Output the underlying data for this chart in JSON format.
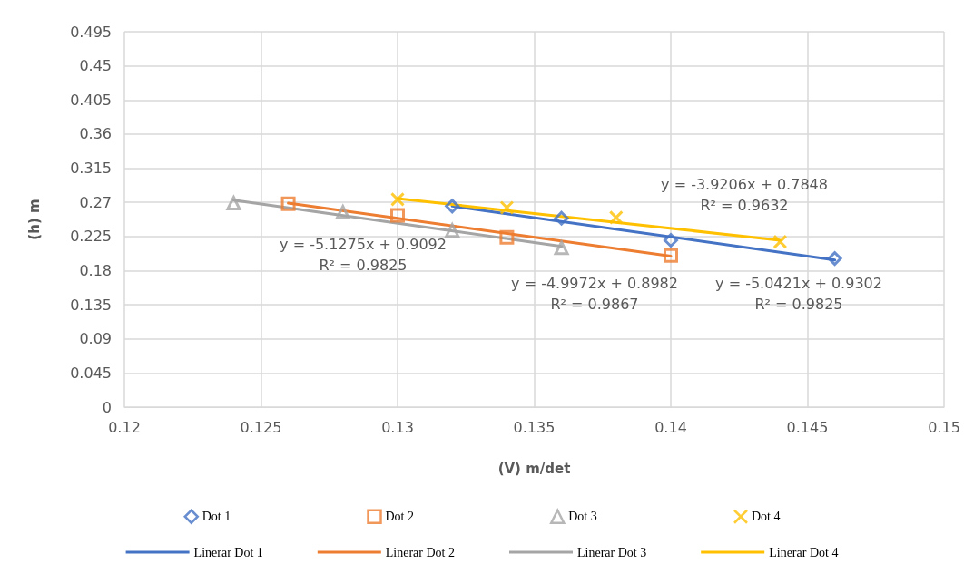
{
  "chart_data": {
    "type": "scatter",
    "xlabel": "(V) m/det",
    "ylabel": "(h) m",
    "xlim": [
      0.12,
      0.15
    ],
    "xticks": [
      0.12,
      0.125,
      0.13,
      0.135,
      0.14,
      0.145,
      0.15
    ],
    "ylim": [
      0,
      0.495
    ],
    "yticks": [
      0,
      0.045,
      0.09,
      0.135,
      0.18,
      0.225,
      0.27,
      0.315,
      0.36,
      0.405,
      0.45,
      0.495
    ],
    "grid": true,
    "legend": "bottom",
    "series": [
      {
        "name": "Dot 1",
        "marker": "diamond",
        "color": "#4472c4",
        "x": [
          0.132,
          0.136,
          0.14,
          0.146
        ],
        "values": [
          0.265,
          0.249,
          0.22,
          0.196
        ]
      },
      {
        "name": "Dot 2",
        "marker": "square",
        "color": "#ed7d31",
        "x": [
          0.126,
          0.13,
          0.134,
          0.14
        ],
        "values": [
          0.268,
          0.253,
          0.224,
          0.2
        ]
      },
      {
        "name": "Dot 3",
        "marker": "triangle",
        "color": "#a5a5a5",
        "x": [
          0.124,
          0.128,
          0.132,
          0.136
        ],
        "values": [
          0.269,
          0.257,
          0.233,
          0.21
        ]
      },
      {
        "name": "Dot 4",
        "marker": "cross",
        "color": "#ffc000",
        "x": [
          0.13,
          0.134,
          0.138,
          0.144
        ],
        "values": [
          0.274,
          0.263,
          0.25,
          0.218
        ]
      },
      {
        "name": "Linerar Dot 1",
        "type": "line",
        "marker": "none",
        "color": "#4472c4",
        "x": [
          0.132,
          0.146
        ],
        "values": [
          0.265,
          0.194
        ]
      },
      {
        "name": "Linerar Dot 2",
        "type": "line",
        "marker": "none",
        "color": "#ed7d31",
        "x": [
          0.126,
          0.14
        ],
        "values": [
          0.269,
          0.199
        ]
      },
      {
        "name": "Linerar Dot 3",
        "type": "line",
        "marker": "none",
        "color": "#a5a5a5",
        "x": [
          0.124,
          0.136
        ],
        "values": [
          0.273,
          0.212
        ]
      },
      {
        "name": "Linerar Dot 4",
        "type": "line",
        "marker": "none",
        "color": "#ffc000",
        "x": [
          0.13,
          0.144
        ],
        "values": [
          0.275,
          0.22
        ]
      }
    ],
    "annotations": [
      "y = -3.9206x + 0.7848\nR² = 0.9632",
      "y = -5.1275x + 0.9092\nR² = 0.9825",
      "y = -4.9972x + 0.8982\nR² = 0.9867",
      "y = -5.0421x + 0.9302\nR² = 0.9825"
    ]
  }
}
